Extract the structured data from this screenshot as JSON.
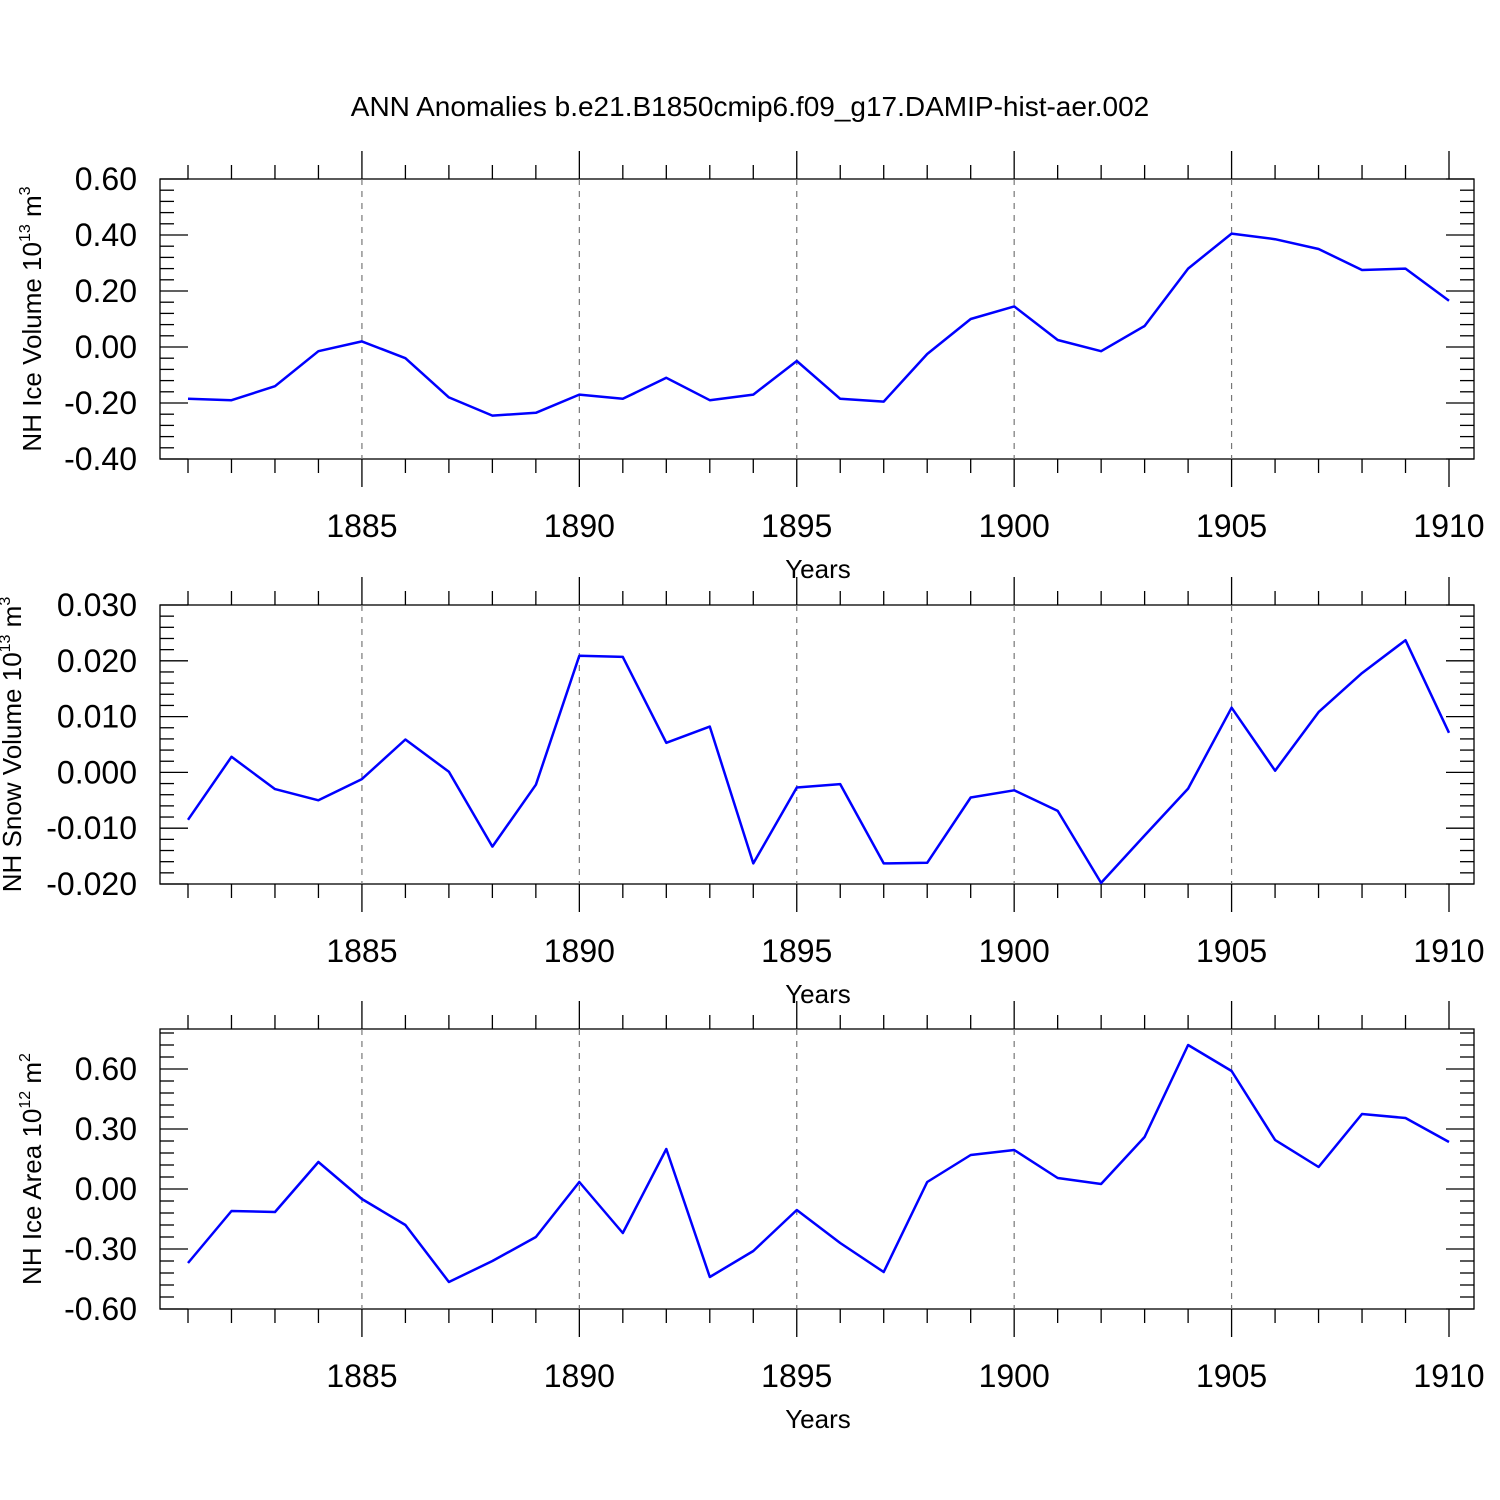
{
  "title": "ANN Anomalies b.e21.B1850cmip6.f09_g17.DAMIP-hist-aer.002",
  "line_color": "#0000ff",
  "chart_data": [
    {
      "type": "line",
      "title": "ANN Anomalies b.e21.B1850cmip6.f09_g17.DAMIP-hist-aer.002",
      "xlabel": "Years",
      "ylabel": "NH Ice Volume 10",
      "ylabel_sup": "13",
      "ylabel_unit": " m",
      "ylabel_unit_sup": "3",
      "xlim": [
        1881,
        1910
      ],
      "ylim": [
        -0.4,
        0.6
      ],
      "xticks": [
        "1885",
        "1890",
        "1895",
        "1900",
        "1905",
        "1910"
      ],
      "yticks": [
        "-0.40",
        "-0.20",
        "0.00",
        "0.20",
        "0.40",
        "0.60"
      ],
      "x": [
        1881,
        1882,
        1883,
        1884,
        1885,
        1886,
        1887,
        1888,
        1889,
        1890,
        1891,
        1892,
        1893,
        1894,
        1895,
        1896,
        1897,
        1898,
        1899,
        1900,
        1901,
        1902,
        1903,
        1904,
        1905,
        1906,
        1907,
        1908,
        1909,
        1910
      ],
      "series": [
        {
          "name": "NH Ice Volume",
          "values": [
            -0.185,
            -0.19,
            -0.14,
            -0.015,
            0.02,
            -0.04,
            -0.18,
            -0.245,
            -0.235,
            -0.17,
            -0.185,
            -0.11,
            -0.19,
            -0.17,
            -0.05,
            -0.185,
            -0.195,
            -0.025,
            0.1,
            0.145,
            0.025,
            -0.015,
            0.075,
            0.28,
            0.405,
            0.385,
            0.35,
            0.275,
            0.28,
            0.165
          ]
        }
      ]
    },
    {
      "type": "line",
      "xlabel": "Years",
      "ylabel": "NH Snow Volume 10",
      "ylabel_sup": "13",
      "ylabel_unit": " m",
      "ylabel_unit_sup": "3",
      "xlim": [
        1881,
        1910
      ],
      "ylim": [
        -0.02,
        0.03
      ],
      "xticks": [
        "1885",
        "1890",
        "1895",
        "1900",
        "1905",
        "1910"
      ],
      "yticks": [
        "-0.020",
        "-0.010",
        "0.000",
        "0.010",
        "0.020",
        "0.030"
      ],
      "x": [
        1881,
        1882,
        1883,
        1884,
        1885,
        1886,
        1887,
        1888,
        1889,
        1890,
        1891,
        1892,
        1893,
        1894,
        1895,
        1896,
        1897,
        1898,
        1899,
        1900,
        1901,
        1902,
        1903,
        1904,
        1905,
        1906,
        1907,
        1908,
        1909,
        1910
      ],
      "series": [
        {
          "name": "NH Snow Volume",
          "values": [
            -0.0085,
            0.0028,
            -0.003,
            -0.005,
            -0.0012,
            0.0059,
            0.0001,
            -0.0133,
            -0.0022,
            0.0209,
            0.0207,
            0.0053,
            0.0082,
            -0.0163,
            -0.0027,
            -0.0021,
            -0.0163,
            -0.0162,
            -0.0045,
            -0.0032,
            -0.0069,
            -0.0198,
            -0.0113,
            -0.0029,
            0.0116,
            0.0003,
            0.0108,
            0.0178,
            0.0237,
            0.0071
          ]
        }
      ]
    },
    {
      "type": "line",
      "xlabel": "Years",
      "ylabel": "NH Ice Area 10",
      "ylabel_sup": "12",
      "ylabel_unit": " m",
      "ylabel_unit_sup": "2",
      "xlim": [
        1881,
        1910
      ],
      "ylim": [
        -0.6,
        0.8
      ],
      "xticks": [
        "1885",
        "1890",
        "1895",
        "1900",
        "1905",
        "1910"
      ],
      "yticks": [
        "-0.60",
        "-0.30",
        "0.00",
        "0.30",
        "0.60"
      ],
      "x": [
        1881,
        1882,
        1883,
        1884,
        1885,
        1886,
        1887,
        1888,
        1889,
        1890,
        1891,
        1892,
        1893,
        1894,
        1895,
        1896,
        1897,
        1898,
        1899,
        1900,
        1901,
        1902,
        1903,
        1904,
        1905,
        1906,
        1907,
        1908,
        1909,
        1910
      ],
      "series": [
        {
          "name": "NH Ice Area",
          "values": [
            -0.37,
            -0.11,
            -0.115,
            0.135,
            -0.05,
            -0.18,
            -0.465,
            -0.36,
            -0.24,
            0.035,
            -0.22,
            0.2,
            -0.44,
            -0.31,
            -0.105,
            -0.27,
            -0.415,
            0.035,
            0.17,
            0.195,
            0.055,
            0.025,
            0.26,
            0.72,
            0.59,
            0.245,
            0.11,
            0.375,
            0.355,
            0.235
          ]
        }
      ]
    }
  ]
}
